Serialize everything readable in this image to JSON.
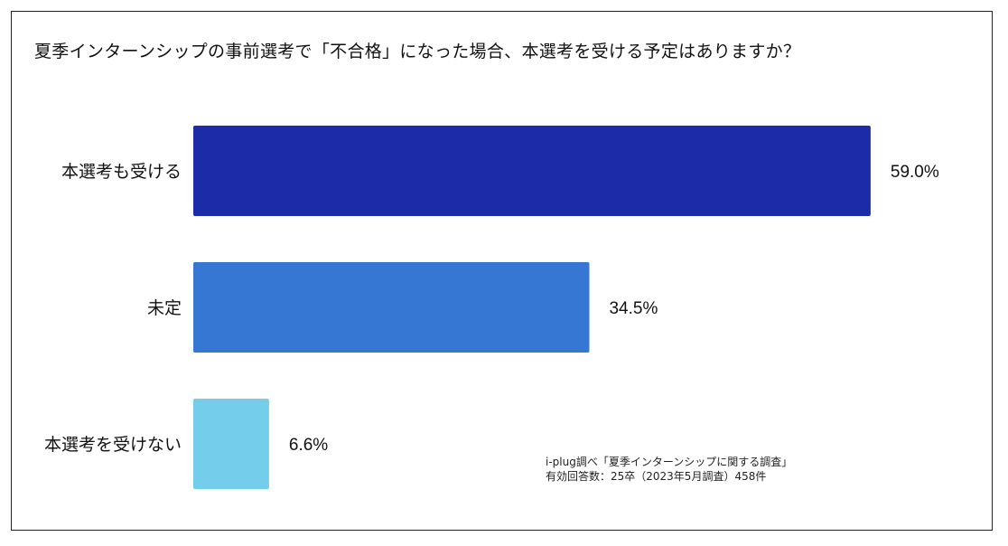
{
  "chart_data": {
    "type": "bar",
    "orientation": "horizontal",
    "title": "夏季インターンシップの事前選考で「不合格」になった場合、本選考を受ける予定はありますか？",
    "categories": [
      "本選考も受ける",
      "未定",
      "本選考を受けない"
    ],
    "values": [
      59.0,
      34.5,
      6.6
    ],
    "value_labels": [
      "59.0%",
      "34.5%",
      "6.6%"
    ],
    "colors": [
      "#1c2ba8",
      "#3577d2",
      "#74cdeb"
    ],
    "xlim": [
      0,
      100
    ],
    "grid": false,
    "legend": "none"
  },
  "source_note": {
    "line1": "i-plug調べ「夏季インターンシップに関する調査」",
    "line2": "有効回答数：25卒（2023年5月調査）458件"
  }
}
